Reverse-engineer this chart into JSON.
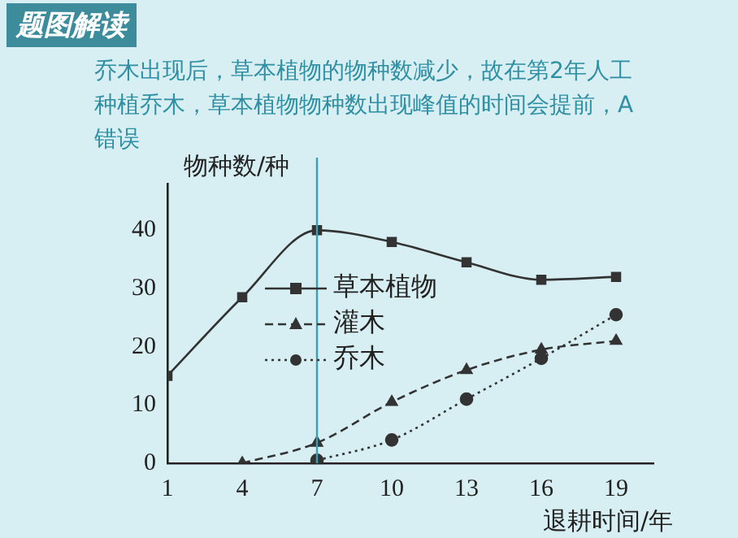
{
  "chart_data": {
    "type": "line",
    "title": "题图解读",
    "subtitle": "乔木出现后，草本植物的物种数减少，故在第2年人工种植乔木，草本植物物种数出现峰值的时间会提前，A错误",
    "xlabel": "退耕时间/年",
    "ylabel": "物种数/种",
    "x": [
      1,
      4,
      7,
      10,
      13,
      16,
      19
    ],
    "series": [
      {
        "name": "草本植物",
        "color": "#333333",
        "marker": "square",
        "line_style": "solid",
        "values": [
          15,
          28.5,
          40,
          38,
          34.5,
          31.5,
          32
        ]
      },
      {
        "name": "灌木",
        "color": "#333333",
        "marker": "triangle",
        "line_style": "dashed",
        "values": [
          null,
          0,
          3.5,
          10.5,
          16,
          19.5,
          21
        ]
      },
      {
        "name": "乔木",
        "color": "#333333",
        "marker": "circle",
        "line_style": "dotted",
        "values": [
          null,
          null,
          0.5,
          4,
          11,
          18,
          25.5
        ]
      }
    ],
    "xlim": [
      1,
      20.5
    ],
    "xticks": [
      1,
      4,
      7,
      10,
      13,
      16,
      19
    ],
    "ylim": [
      0,
      48
    ],
    "yticks": [
      0,
      10,
      20,
      30,
      40
    ],
    "ref_lines": [
      {
        "axis": "x",
        "value": 7,
        "color": "#3a9fb3"
      }
    ],
    "grid": false,
    "legend": "left"
  }
}
